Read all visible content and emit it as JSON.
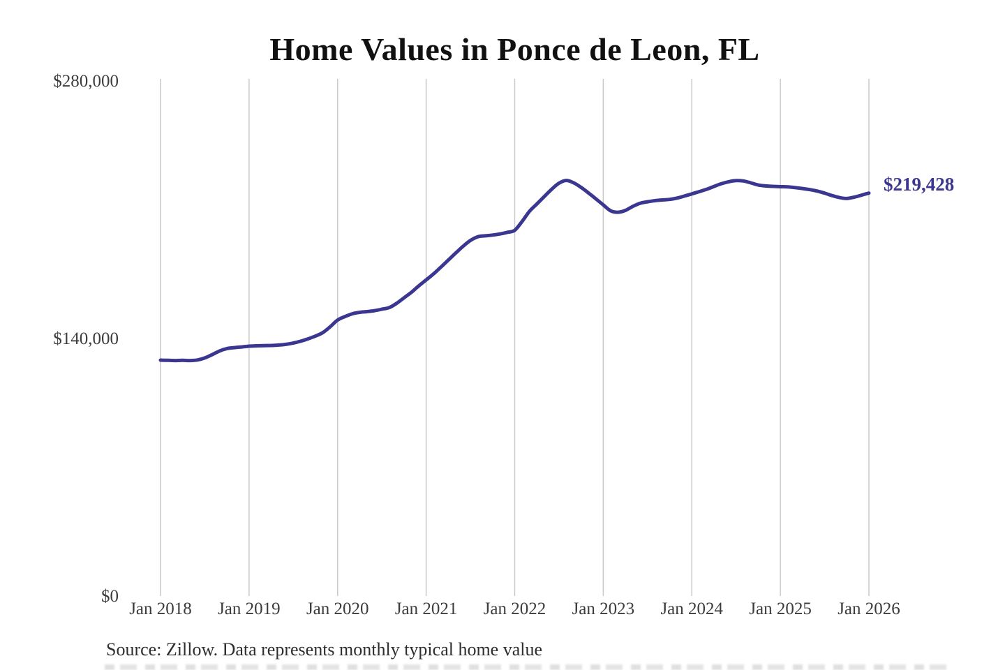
{
  "title": "Home Values in Ponce de Leon, FL",
  "annotation": {
    "label": "$219,428"
  },
  "source": "Source: Zillow. Data represents monthly typical home value",
  "colors": {
    "line": "#3b3690",
    "grid": "#c9c9c9",
    "title": "#111111",
    "ticks": "#3c3c3c",
    "annotation": "#3b3690",
    "source": "#2e2e2e"
  },
  "chart_data": {
    "type": "line",
    "title": "Home Values in Ponce de Leon, FL",
    "xlabel": "",
    "ylabel": "",
    "x_interval": "monthly",
    "x_start": "Jan 2018",
    "x_end": "Jan 2026",
    "x_tick_labels": [
      "Jan 2018",
      "Jan 2019",
      "Jan 2020",
      "Jan 2021",
      "Jan 2022",
      "Jan 2023",
      "Jan 2024",
      "Jan 2025",
      "Jan 2026"
    ],
    "y_tick_labels": [
      "$0",
      "$140,000",
      "$280,000"
    ],
    "y_tick_values": [
      0,
      140000,
      280000
    ],
    "ylim": [
      0,
      280000
    ],
    "grid": "vertical-only",
    "legend": false,
    "end_label": "$219,428",
    "end_value": 219428,
    "series": [
      {
        "name": "Monthly typical home value",
        "values": [
          128600,
          128500,
          128400,
          128500,
          128400,
          128700,
          129800,
          131600,
          133600,
          134900,
          135400,
          135800,
          136200,
          136400,
          136500,
          136600,
          136800,
          137200,
          137900,
          138900,
          140200,
          141700,
          143600,
          146800,
          150400,
          152300,
          153800,
          154600,
          155000,
          155500,
          156300,
          157200,
          159500,
          162500,
          165500,
          169000,
          172200,
          175500,
          179200,
          183000,
          186800,
          190500,
          193700,
          195700,
          196200,
          196600,
          197200,
          198100,
          199200,
          204000,
          209500,
          213500,
          217500,
          221500,
          224800,
          226300,
          225000,
          222500,
          219500,
          216300,
          213000,
          209800,
          209000,
          210000,
          212200,
          213900,
          214700,
          215300,
          215700,
          216000,
          216700,
          217800,
          219000,
          220200,
          221500,
          223000,
          224500,
          225600,
          226200,
          226000,
          225000,
          223800,
          223300,
          223100,
          222900,
          222800,
          222400,
          221900,
          221300,
          220500,
          219400,
          218100,
          217000,
          216500,
          217200,
          218300,
          219428
        ]
      }
    ]
  }
}
